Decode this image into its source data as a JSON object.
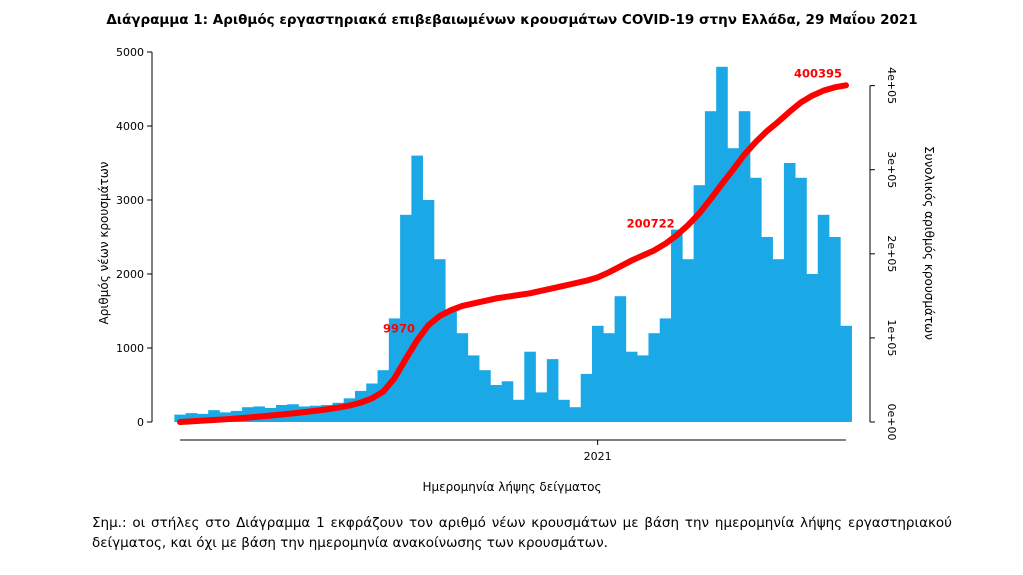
{
  "chart_data": {
    "type": "bar",
    "title": "Διάγραμμα 1: Αριθμός εργαστηριακά επιβεβαιωμένων κρουσμάτων COVID-19 στην Ελλάδα, 29 Μαΐου 2021",
    "xlabel": "Ημερομηνία λήψης δείγματος",
    "ylabel": "Αριθμός νέων κρουσμάτων",
    "y2label": "Συνολικός αριθμός κρουσμάτων",
    "x_tick_label": "2021",
    "ylim": [
      0,
      5000
    ],
    "y_ticks": [
      "0",
      "1000",
      "2000",
      "3000",
      "4000",
      "5000"
    ],
    "y2lim": [
      0,
      440000
    ],
    "y2_ticks": [
      "0e+00",
      "1e+05",
      "2e+05",
      "3e+05",
      "4e+05"
    ],
    "bar_color": "#1aa9e6",
    "line_color": "#ff0000",
    "legend": "none",
    "grid": false,
    "x_start_index": 0,
    "x_end_index": 59,
    "x_2021_index": 37,
    "series": [
      {
        "name": "new_cases",
        "kind": "bar",
        "values": [
          100,
          120,
          110,
          160,
          130,
          150,
          200,
          210,
          190,
          230,
          240,
          210,
          220,
          230,
          260,
          320,
          420,
          520,
          700,
          1400,
          2800,
          3600,
          3000,
          2200,
          1500,
          1200,
          900,
          700,
          500,
          550,
          300,
          950,
          400,
          850,
          300,
          200,
          650,
          1300,
          1200,
          1700,
          950,
          900,
          1200,
          1400,
          2600,
          2200,
          3200,
          4200,
          4800,
          3700,
          4200,
          3300,
          2500,
          2200,
          3500,
          3300,
          2000,
          2800,
          2500,
          1300
        ]
      },
      {
        "name": "cumulative_cases",
        "kind": "line",
        "values": [
          0,
          800,
          1600,
          2400,
          3200,
          4100,
          5200,
          6400,
          7600,
          8900,
          10300,
          11700,
          13300,
          15000,
          17000,
          19500,
          23000,
          28000,
          36000,
          52000,
          75000,
          97000,
          115000,
          126000,
          133000,
          138000,
          141000,
          144000,
          147000,
          149000,
          151000,
          153000,
          156000,
          159000,
          162000,
          165000,
          168000,
          172000,
          178000,
          185000,
          192000,
          198000,
          204000,
          212000,
          222000,
          234000,
          248000,
          265000,
          283000,
          300000,
          318000,
          333000,
          346000,
          357000,
          369000,
          380000,
          388000,
          394000,
          398000,
          400395
        ]
      }
    ],
    "annotations": [
      "9970",
      "200722",
      "400395"
    ]
  },
  "note": "Σημ.: οι στήλες στο Διάγραμμα 1 εκφράζουν τον αριθμό νέων κρουσμάτων με βάση την ημερομηνία λήψης εργαστηριακού δείγματος, και όχι με βάση την ημερομηνία ανακοίνωσης των κρουσμάτων."
}
